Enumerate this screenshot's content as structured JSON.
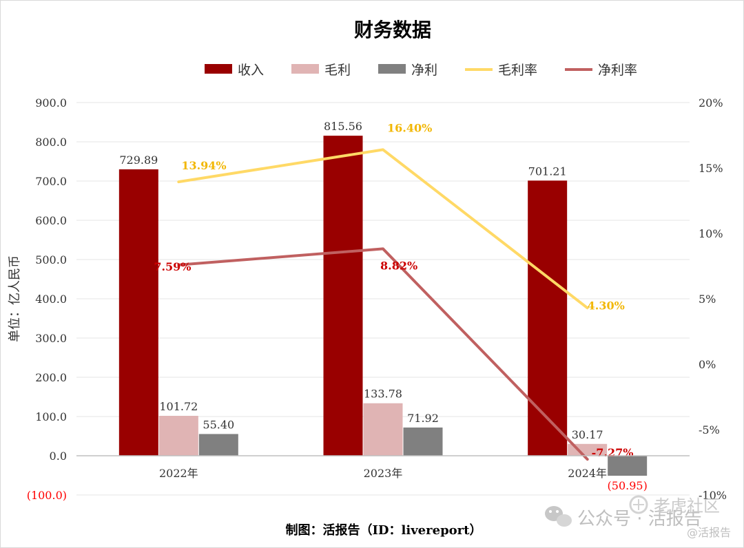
{
  "chart_data": {
    "type": "bar",
    "title": "财务数据",
    "categories": [
      "2022年",
      "2023年",
      "2024年"
    ],
    "ylabel": "单位：亿人民币",
    "ylim": [
      -100,
      900
    ],
    "y_ticks": [
      "900.0",
      "800.0",
      "700.0",
      "600.0",
      "500.0",
      "400.0",
      "300.0",
      "200.0",
      "100.0",
      "0.0",
      "(100.0)"
    ],
    "y2lim": [
      -10,
      20
    ],
    "y2_ticks": [
      "20%",
      "15%",
      "10%",
      "5%",
      "0%",
      "-5%",
      "-10%"
    ],
    "series": [
      {
        "name": "收入",
        "kind": "bar",
        "axis": "left",
        "color": "#990000",
        "values": [
          729.89,
          815.56,
          701.21
        ],
        "labels": [
          "729.89",
          "815.56",
          "701.21"
        ]
      },
      {
        "name": "毛利",
        "kind": "bar",
        "axis": "left",
        "color": "#e0b4b4",
        "values": [
          101.72,
          133.78,
          30.17
        ],
        "labels": [
          "101.72",
          "133.78",
          "30.17"
        ]
      },
      {
        "name": "净利",
        "kind": "bar",
        "axis": "left",
        "color": "#808080",
        "values": [
          55.4,
          71.92,
          -50.95
        ],
        "labels": [
          "55.40",
          "71.92",
          "(50.95)"
        ]
      },
      {
        "name": "毛利率",
        "kind": "line",
        "axis": "right",
        "color": "#ffd966",
        "label_color": "#f2b705",
        "values": [
          13.94,
          16.4,
          4.3
        ],
        "labels": [
          "13.94%",
          "16.40%",
          "4.30%"
        ]
      },
      {
        "name": "净利率",
        "kind": "line",
        "axis": "right",
        "color": "#c06060",
        "label_color": "#cc0000",
        "values": [
          7.59,
          8.82,
          -7.27
        ],
        "labels": [
          "7.59%",
          "8.82%",
          "-7.27%"
        ]
      }
    ],
    "legend_position": "top",
    "grid": true
  },
  "footer": {
    "credit": "制图：活报告（ID：livereport）"
  },
  "watermark": {
    "text1": "公众号 · 活报告",
    "text2": "老虎社区",
    "text3": "@活报告"
  }
}
